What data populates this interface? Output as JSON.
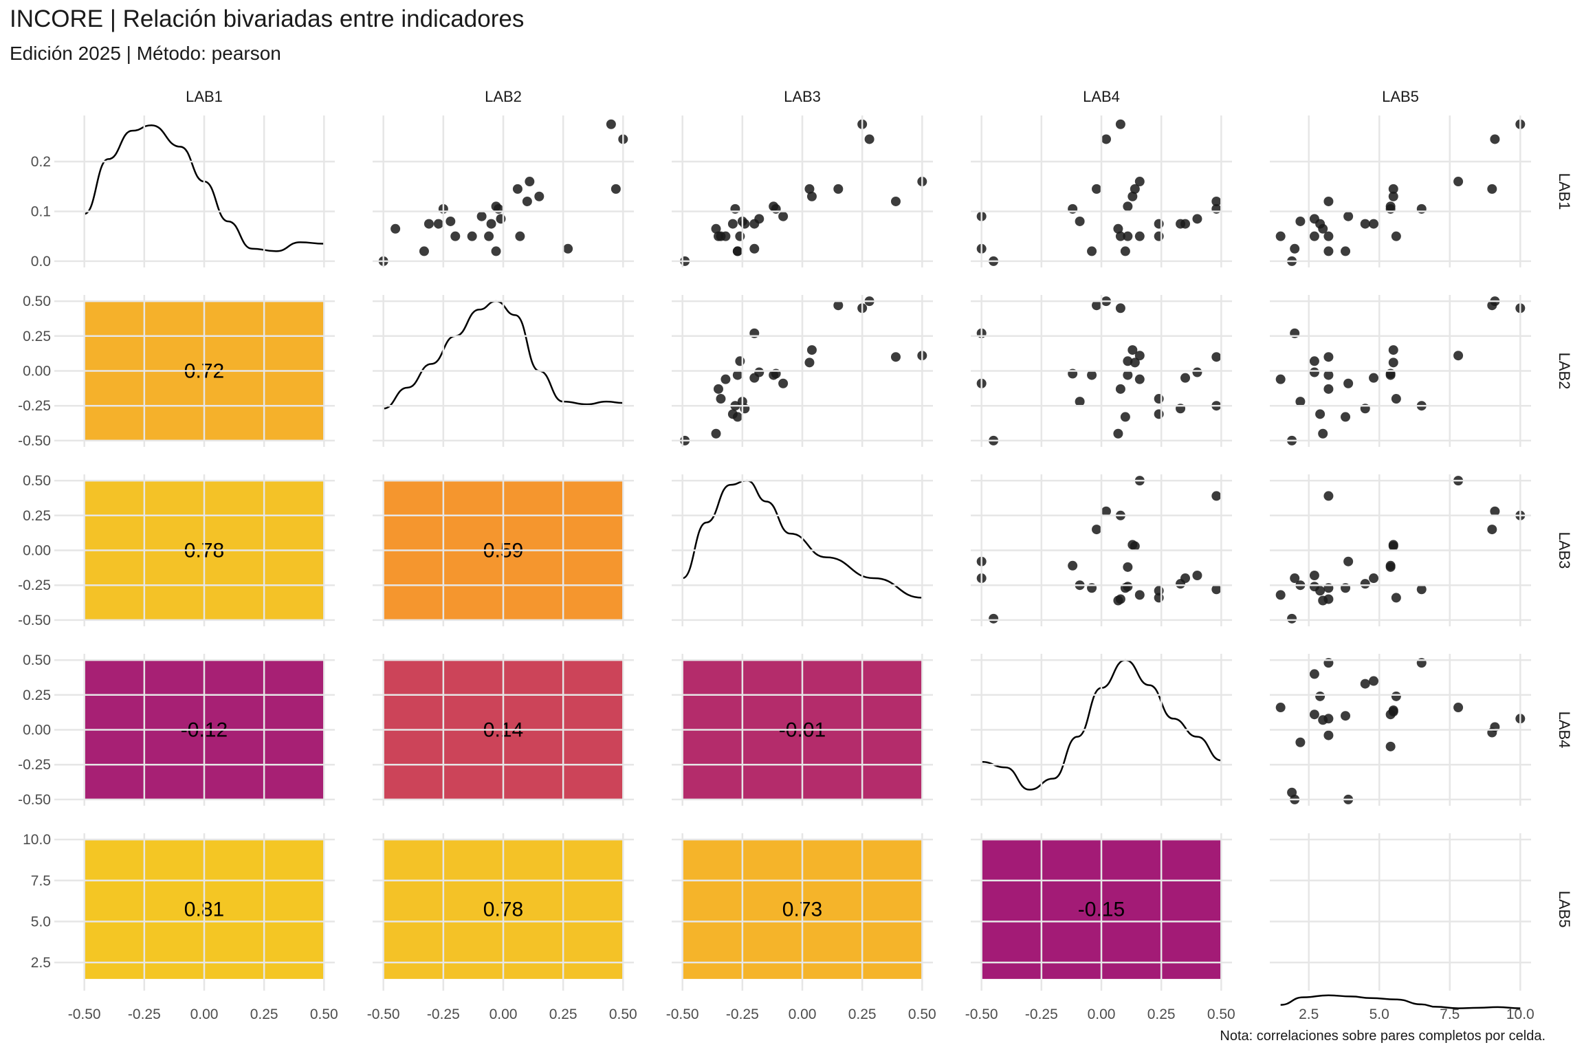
{
  "title": "INCORE | Relación bivariadas entre indicadores",
  "subtitle": "Edición 2025 | Método: pearson",
  "caption": "Nota: correlaciones sobre pares completos por celda.",
  "colors": {
    "grid": "#e6e6e6",
    "point": "#1a1a1a",
    "line": "#000000",
    "text": "#1a1a1a",
    "axis_text": "#4d4d4d"
  },
  "chart_data": {
    "type": "scatter",
    "variables": [
      "LAB1",
      "LAB2",
      "LAB3",
      "LAB4",
      "LAB5"
    ],
    "axes": {
      "LAB1": {
        "range": [
          -0.5,
          0.5
        ],
        "ticks": [
          -0.5,
          -0.25,
          0,
          0.25,
          0.5
        ],
        "tick_labels": [
          "-0.50",
          "-0.25",
          "0.00",
          "0.25",
          "0.50"
        ]
      },
      "LAB2": {
        "range": [
          -0.5,
          0.5
        ],
        "ticks": [
          -0.5,
          -0.25,
          0,
          0.25,
          0.5
        ],
        "tick_labels": [
          "-0.50",
          "-0.25",
          "0.00",
          "0.25",
          "0.50"
        ]
      },
      "LAB3": {
        "range": [
          -0.5,
          0.5
        ],
        "ticks": [
          -0.5,
          -0.25,
          0,
          0.25,
          0.5
        ],
        "tick_labels": [
          "-0.50",
          "-0.25",
          "0.00",
          "0.25",
          "0.50"
        ]
      },
      "LAB4": {
        "range": [
          -0.5,
          0.5
        ],
        "ticks": [
          -0.5,
          -0.25,
          0,
          0.25,
          0.5
        ],
        "tick_labels": [
          "-0.50",
          "-0.25",
          "0.00",
          "0.25",
          "0.50"
        ]
      },
      "LAB5": {
        "range": [
          1.5,
          10
        ],
        "ticks": [
          2.5,
          5,
          7.5,
          10
        ],
        "tick_labels": [
          "2.5",
          "5.0",
          "7.5",
          "10.0"
        ]
      }
    },
    "diag_y_axis": {
      "range": [
        0,
        0.28
      ],
      "ticks": [
        0,
        0.1,
        0.2
      ],
      "tick_labels": [
        "0.0",
        "0.1",
        "0.2"
      ]
    },
    "correlations": [
      {
        "row": "LAB2",
        "col": "LAB1",
        "value": 0.72,
        "label": "0.72",
        "color": "#F5B12B"
      },
      {
        "row": "LAB3",
        "col": "LAB1",
        "value": 0.78,
        "label": "0.78",
        "color": "#F4C227"
      },
      {
        "row": "LAB3",
        "col": "LAB2",
        "value": 0.59,
        "label": "0.59",
        "color": "#F5962E"
      },
      {
        "row": "LAB4",
        "col": "LAB1",
        "value": -0.12,
        "label": "-0.12",
        "color": "#A72074"
      },
      {
        "row": "LAB4",
        "col": "LAB2",
        "value": 0.14,
        "label": "0.14",
        "color": "#CC4459"
      },
      {
        "row": "LAB4",
        "col": "LAB3",
        "value": -0.01,
        "label": "-0.01",
        "color": "#B42C6B"
      },
      {
        "row": "LAB5",
        "col": "LAB1",
        "value": 0.81,
        "label": "0.81",
        "color": "#F4C624"
      },
      {
        "row": "LAB5",
        "col": "LAB2",
        "value": 0.78,
        "label": "0.78",
        "color": "#F4C227"
      },
      {
        "row": "LAB5",
        "col": "LAB3",
        "value": 0.73,
        "label": "0.73",
        "color": "#F5B42A"
      },
      {
        "row": "LAB5",
        "col": "LAB4",
        "value": -0.15,
        "label": "-0.15",
        "color": "#A31B76"
      }
    ],
    "densities": {
      "LAB1": {
        "x": [
          -0.5,
          -0.4,
          -0.3,
          -0.22,
          -0.1,
          0,
          0.1,
          0.2,
          0.3,
          0.4,
          0.5
        ],
        "y": [
          0.095,
          0.205,
          0.262,
          0.273,
          0.23,
          0.16,
          0.08,
          0.025,
          0.02,
          0.038,
          0.035
        ]
      },
      "LAB2": {
        "x": [
          -0.5,
          -0.4,
          -0.3,
          -0.2,
          -0.1,
          -0.03,
          0.05,
          0.15,
          0.25,
          0.35,
          0.43,
          0.5
        ],
        "y": [
          -0.27,
          -0.12,
          0.05,
          0.25,
          0.44,
          0.5,
          0.4,
          0.0,
          -0.22,
          -0.24,
          -0.22,
          -0.23
        ]
      },
      "LAB3": {
        "x": [
          -0.5,
          -0.4,
          -0.3,
          -0.23,
          -0.15,
          -0.05,
          0.1,
          0.3,
          0.5
        ],
        "y": [
          -0.2,
          0.2,
          0.47,
          0.5,
          0.35,
          0.12,
          -0.05,
          -0.2,
          -0.34
        ]
      },
      "LAB4": {
        "x": [
          -0.5,
          -0.4,
          -0.3,
          -0.2,
          -0.1,
          0,
          0.1,
          0.2,
          0.3,
          0.4,
          0.5
        ],
        "y": [
          -0.23,
          -0.27,
          -0.43,
          -0.35,
          -0.05,
          0.3,
          0.5,
          0.32,
          0.08,
          -0.05,
          -0.22
        ]
      },
      "LAB5": {
        "x": [
          1.5,
          2.3,
          3.2,
          4.0,
          4.7,
          5.6,
          6.5,
          7.0,
          7.8,
          8.5,
          9.2,
          10.0
        ],
        "y": [
          -0.08,
          0.38,
          0.5,
          0.43,
          0.33,
          0.25,
          -0.05,
          -0.2,
          -0.29,
          -0.26,
          -0.22,
          -0.29
        ]
      }
    },
    "observations": {
      "LAB1": [
        0.275,
        0.245,
        0.145,
        0.16,
        0.145,
        0.13,
        0.12,
        0.105,
        0.11,
        0.105,
        0.09,
        0.085,
        0.08,
        0.075,
        0.075,
        0.075,
        0.065,
        0.05,
        0.05,
        0.05,
        0.05,
        0.025,
        0.02,
        0.02,
        0.0
      ],
      "LAB2": [
        0.45,
        0.5,
        0.47,
        0.11,
        0.06,
        0.15,
        0.1,
        -0.25,
        -0.03,
        -0.02,
        -0.09,
        -0.01,
        -0.22,
        -0.31,
        -0.05,
        -0.27,
        -0.45,
        -0.2,
        -0.13,
        0.07,
        -0.06,
        0.27,
        -0.33,
        -0.03,
        -0.5
      ],
      "LAB3": [
        0.25,
        0.28,
        0.15,
        0.5,
        0.03,
        0.04,
        0.39,
        -0.28,
        -0.12,
        -0.11,
        -0.08,
        -0.18,
        -0.25,
        -0.29,
        -0.2,
        -0.24,
        -0.36,
        -0.34,
        -0.35,
        -0.26,
        -0.32,
        -0.2,
        -0.27,
        -0.27,
        -0.49
      ],
      "LAB4": [
        0.08,
        0.02,
        -0.02,
        0.16,
        0.14,
        0.13,
        0.48,
        0.48,
        0.11,
        -0.12,
        -0.5,
        0.4,
        -0.09,
        0.24,
        0.35,
        0.33,
        0.07,
        0.24,
        0.08,
        0.11,
        0.16,
        -0.5,
        0.1,
        -0.04,
        -0.45
      ],
      "LAB5": [
        10.0,
        9.1,
        9.0,
        7.8,
        5.5,
        5.5,
        3.2,
        6.5,
        5.4,
        5.4,
        3.9,
        2.7,
        2.2,
        2.9,
        4.8,
        4.5,
        3.0,
        5.6,
        3.2,
        2.7,
        1.5,
        2.0,
        3.8,
        3.2,
        1.9
      ]
    }
  }
}
